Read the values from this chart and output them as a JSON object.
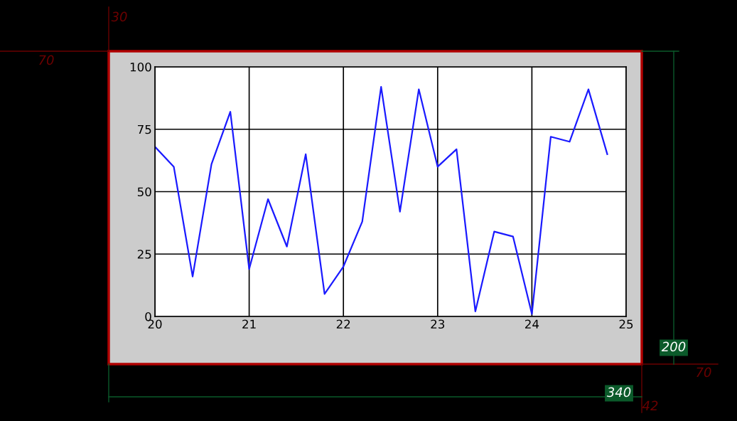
{
  "chart_data": {
    "type": "line",
    "x": [
      20,
      20.2,
      20.4,
      20.6,
      20.8,
      21,
      21.2,
      21.4,
      21.6,
      21.8,
      22,
      22.2,
      22.4,
      22.6,
      22.8,
      23,
      23.2,
      23.4,
      23.6,
      23.8,
      24,
      24.2,
      24.4,
      24.6,
      24.8
    ],
    "series": [
      {
        "color": "#1a1aff",
        "values": [
          68,
          60,
          16,
          61,
          82,
          19,
          47,
          28,
          65,
          9,
          20,
          38,
          92,
          42,
          91,
          60,
          67,
          2,
          34,
          32,
          1,
          72,
          70,
          91,
          65
        ]
      }
    ],
    "xlim": [
      20,
      25
    ],
    "xticks": [
      20,
      21,
      22,
      23,
      24,
      25
    ],
    "ylim": [
      0,
      100
    ],
    "yticks": [
      0,
      25,
      50,
      75,
      100
    ],
    "grid": true,
    "legend": false,
    "marker": "none",
    "line_style": "solid",
    "annotations": [
      "30",
      "70",
      "200",
      "340",
      "70",
      "42"
    ]
  }
}
